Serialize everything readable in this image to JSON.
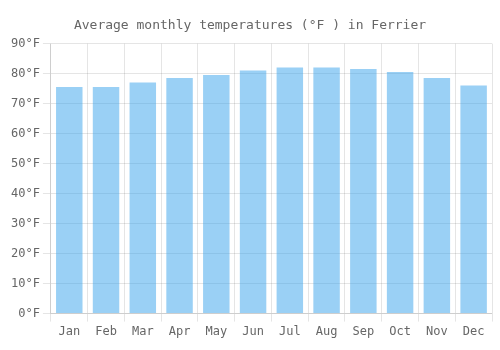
{
  "chart_data": {
    "type": "bar",
    "title": "Average monthly temperatures (°F ) in Ferrier",
    "categories": [
      "Jan",
      "Feb",
      "Mar",
      "Apr",
      "May",
      "Jun",
      "Jul",
      "Aug",
      "Sep",
      "Oct",
      "Nov",
      "Dec"
    ],
    "values": [
      75.5,
      75.5,
      77.0,
      78.5,
      79.5,
      81.0,
      82.0,
      82.0,
      81.5,
      80.5,
      78.5,
      76.0
    ],
    "ylim": [
      0,
      90
    ],
    "yticks": [
      {
        "value": 0,
        "label": "0°F"
      },
      {
        "value": 10,
        "label": "10°F"
      },
      {
        "value": 20,
        "label": "20°F"
      },
      {
        "value": 30,
        "label": "30°F"
      },
      {
        "value": 40,
        "label": "40°F"
      },
      {
        "value": 50,
        "label": "50°F"
      },
      {
        "value": 60,
        "label": "60°F"
      },
      {
        "value": 70,
        "label": "70°F"
      },
      {
        "value": 80,
        "label": "80°F"
      },
      {
        "value": 90,
        "label": "90°F"
      }
    ],
    "grid": true
  }
}
